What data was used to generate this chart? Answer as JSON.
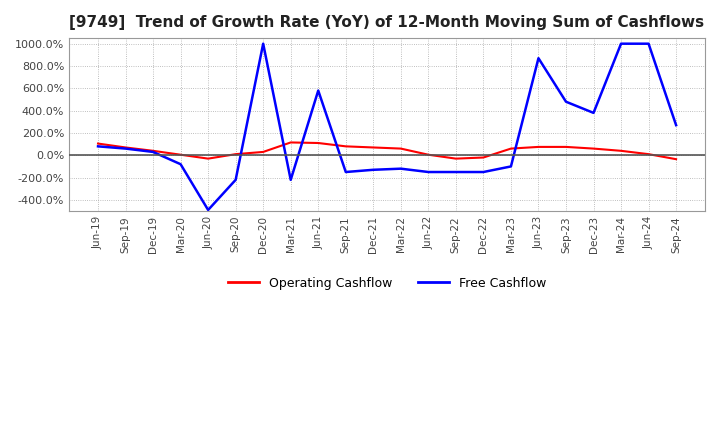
{
  "title": "[9749]  Trend of Growth Rate (YoY) of 12-Month Moving Sum of Cashflows",
  "title_fontsize": 11,
  "ylim": [
    -500,
    1050
  ],
  "yticks": [
    -400,
    -200,
    0,
    200,
    400,
    600,
    800,
    1000
  ],
  "background_color": "#ffffff",
  "grid_color": "#aaaaaa",
  "legend_labels": [
    "Operating Cashflow",
    "Free Cashflow"
  ],
  "legend_colors": [
    "#ff0000",
    "#0000ff"
  ],
  "x_labels": [
    "Jun-19",
    "Sep-19",
    "Dec-19",
    "Mar-20",
    "Jun-20",
    "Sep-20",
    "Dec-20",
    "Mar-21",
    "Jun-21",
    "Sep-21",
    "Dec-21",
    "Mar-22",
    "Jun-22",
    "Sep-22",
    "Dec-22",
    "Mar-23",
    "Jun-23",
    "Sep-23",
    "Dec-23",
    "Mar-24",
    "Jun-24",
    "Sep-24"
  ],
  "operating_cashflow": [
    105,
    70,
    40,
    5,
    -30,
    10,
    30,
    115,
    110,
    80,
    70,
    60,
    5,
    -30,
    -20,
    60,
    75,
    75,
    60,
    40,
    10,
    -35
  ],
  "free_cashflow": [
    80,
    60,
    30,
    -80,
    -490,
    -220,
    1000,
    -220,
    580,
    -150,
    -130,
    -120,
    -150,
    -150,
    -150,
    -100,
    870,
    480,
    380,
    1000,
    1000,
    270
  ]
}
